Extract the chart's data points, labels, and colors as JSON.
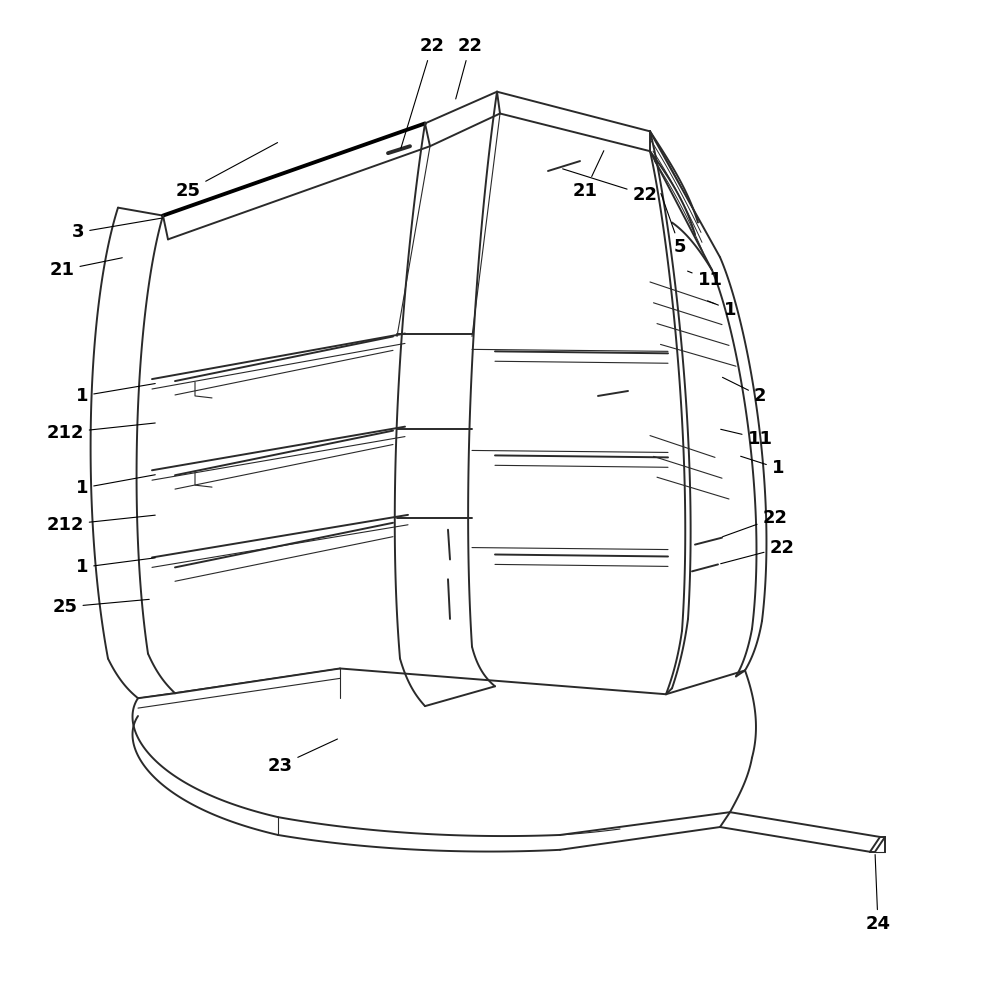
{
  "background_color": "#ffffff",
  "line_color": "#2a2a2a",
  "thick_line_color": "#000000",
  "label_color": "#000000",
  "lw_thin": 0.8,
  "lw_med": 1.4,
  "lw_thick": 2.8,
  "label_fontsize": 13,
  "figsize": [
    9.91,
    10.0
  ],
  "dpi": 100
}
